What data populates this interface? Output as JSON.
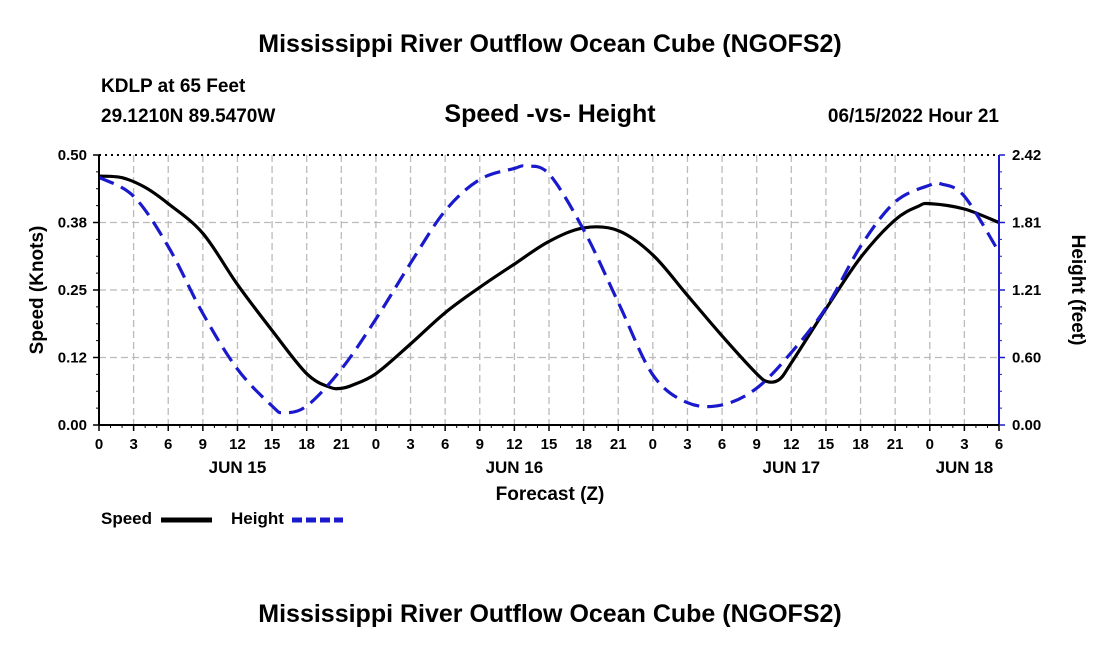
{
  "header": {
    "main_title": "Mississippi River Outflow Ocean Cube (NGOFS2)",
    "station": "KDLP at 65 Feet",
    "coords": "29.1210N  89.5470W",
    "subtitle": "Speed -vs- Height",
    "datetime": "06/15/2022 Hour 21"
  },
  "footer": {
    "title": "Mississippi River Outflow Ocean Cube (NGOFS2)"
  },
  "legend": {
    "speed_label": "Speed",
    "height_label": "Height"
  },
  "colors": {
    "speed": "#000000",
    "height": "#1a1acc",
    "grid": "#bbbbbb"
  },
  "chart_data": {
    "type": "line",
    "title": "Speed -vs- Height",
    "xlabel": "Forecast (Z)",
    "ylabel_left": "Speed (Knots)",
    "ylabel_right": "Height (feet)",
    "xlim": [
      0,
      78
    ],
    "ylim_left": [
      0,
      0.5
    ],
    "ylim_right": [
      0,
      2.42
    ],
    "y_ticks_left": [
      "0.00",
      "0.12",
      "0.25",
      "0.38",
      "0.50"
    ],
    "y_ticks_right": [
      "0.00",
      "0.60",
      "1.21",
      "1.81",
      "2.42"
    ],
    "x_ticks": [
      0,
      3,
      6,
      9,
      12,
      15,
      18,
      21,
      24,
      27,
      30,
      33,
      36,
      39,
      42,
      45,
      48,
      51,
      54,
      57,
      60,
      63,
      66,
      69,
      72,
      75,
      78
    ],
    "x_tick_labels": [
      "0",
      "3",
      "6",
      "9",
      "12",
      "15",
      "18",
      "21",
      "0",
      "3",
      "6",
      "9",
      "12",
      "15",
      "18",
      "21",
      "0",
      "3",
      "6",
      "9",
      "12",
      "15",
      "18",
      "21",
      "0",
      "3",
      "6"
    ],
    "day_labels": [
      {
        "x": 12,
        "label": "JUN 15"
      },
      {
        "x": 36,
        "label": "JUN 16"
      },
      {
        "x": 60,
        "label": "JUN 17"
      },
      {
        "x": 75,
        "label": "JUN 18"
      }
    ],
    "grid": true,
    "series": [
      {
        "name": "Speed",
        "axis": "left",
        "style": "solid",
        "x": [
          0,
          2,
          4,
          6,
          9,
          12,
          15,
          18,
          20,
          21,
          22,
          24,
          27,
          30,
          33,
          36,
          39,
          42,
          45,
          48,
          51,
          54,
          57,
          58,
          59,
          60,
          63,
          66,
          69,
          71,
          72,
          75,
          78
        ],
        "y": [
          0.461,
          0.458,
          0.44,
          0.41,
          0.355,
          0.26,
          0.175,
          0.095,
          0.07,
          0.068,
          0.074,
          0.095,
          0.15,
          0.208,
          0.255,
          0.298,
          0.34,
          0.365,
          0.36,
          0.315,
          0.24,
          0.165,
          0.095,
          0.08,
          0.085,
          0.115,
          0.215,
          0.31,
          0.38,
          0.405,
          0.41,
          0.4,
          0.375
        ]
      },
      {
        "name": "Height",
        "axis": "right",
        "style": "dashed",
        "x": [
          0,
          3,
          6,
          9,
          12,
          15,
          16,
          18,
          21,
          24,
          27,
          30,
          33,
          36,
          37,
          39,
          42,
          45,
          48,
          51,
          54,
          57,
          60,
          63,
          66,
          69,
          72,
          73,
          75,
          78
        ],
        "y": [
          2.22,
          2.05,
          1.6,
          1.0,
          0.5,
          0.17,
          0.11,
          0.17,
          0.5,
          0.95,
          1.45,
          1.92,
          2.2,
          2.3,
          2.32,
          2.25,
          1.75,
          1.1,
          0.45,
          0.2,
          0.18,
          0.33,
          0.65,
          1.05,
          1.6,
          2.0,
          2.15,
          2.16,
          2.05,
          1.55
        ]
      }
    ]
  }
}
